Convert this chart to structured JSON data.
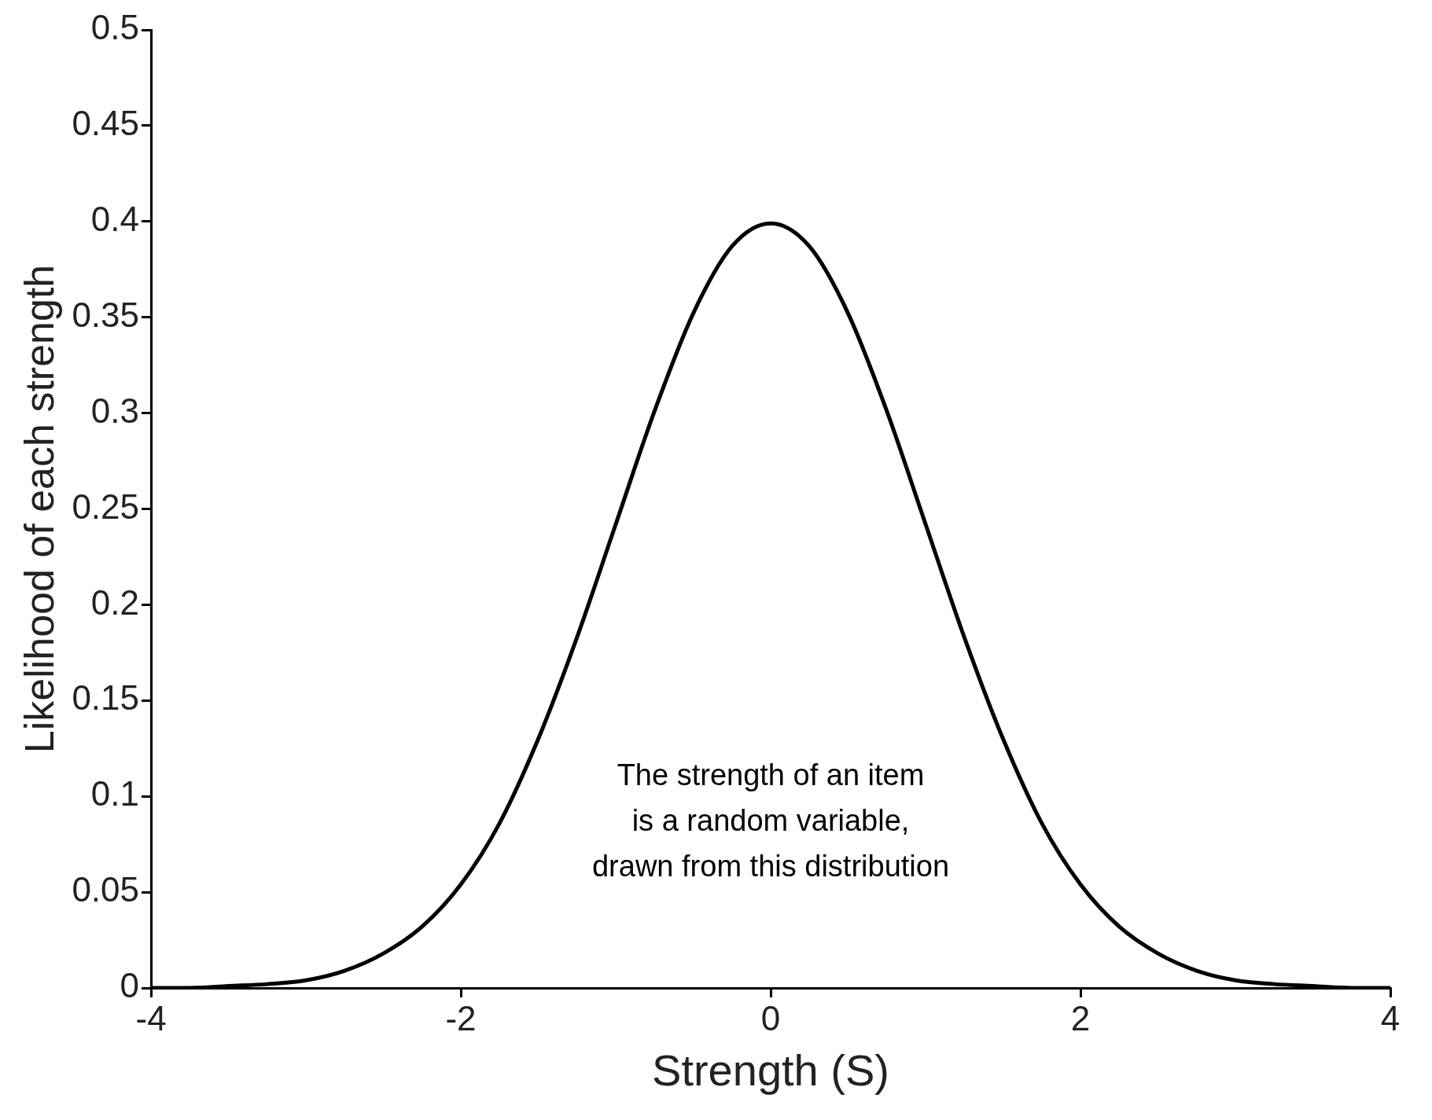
{
  "chart_data": {
    "type": "line",
    "xlabel": "Strength (S)",
    "ylabel": "Likelihood of each strength",
    "x": [
      -4,
      -3.75,
      -3.5,
      -3.25,
      -3,
      -2.75,
      -2.5,
      -2.25,
      -2,
      -1.75,
      -1.5,
      -1.25,
      -1,
      -0.75,
      -0.5,
      -0.25,
      0,
      0.25,
      0.5,
      0.75,
      1,
      1.25,
      1.5,
      1.75,
      2,
      2.25,
      2.5,
      2.75,
      3,
      3.25,
      3.5,
      3.75,
      4
    ],
    "series": [
      {
        "color": "#000000",
        "values": [
          0,
          0,
          0.001,
          0.002,
          0.004,
          0.009,
          0.018,
          0.032,
          0.054,
          0.086,
          0.13,
          0.183,
          0.242,
          0.301,
          0.352,
          0.387,
          0.399,
          0.387,
          0.352,
          0.301,
          0.242,
          0.183,
          0.13,
          0.086,
          0.054,
          0.032,
          0.018,
          0.009,
          0.004,
          0.002,
          0.001,
          0,
          0
        ]
      }
    ],
    "xlim": [
      -4,
      4
    ],
    "xticks": [
      -4,
      -2,
      0,
      2,
      4
    ],
    "ylim": [
      0,
      0.5
    ],
    "yticks": [
      0,
      0.05,
      0.1,
      0.15,
      0.2,
      0.25,
      0.3,
      0.35,
      0.4,
      0.45,
      0.5
    ],
    "grid": false,
    "legend": false,
    "marker": "none",
    "line_style": "solid",
    "annotations": [
      "The strength of an item",
      "is a random variable,",
      "drawn from this distribution"
    ]
  }
}
